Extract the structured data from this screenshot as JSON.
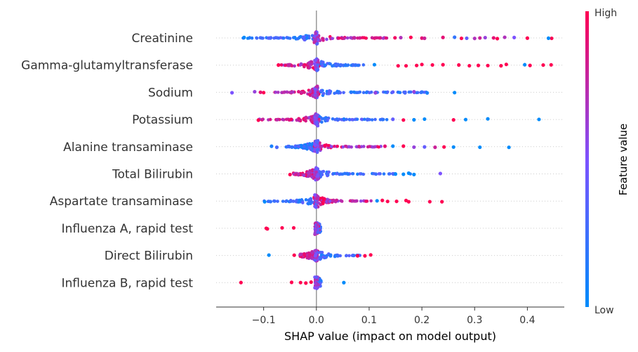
{
  "chart_data": {
    "type": "scatter",
    "subtype": "shap-beeswarm",
    "title": "",
    "xlabel": "SHAP value (impact on model output)",
    "xlim": [
      -0.19,
      0.47
    ],
    "x_ticks": [
      -0.1,
      0.0,
      0.1,
      0.2,
      0.3,
      0.4
    ],
    "x_tick_labels": [
      "−0.1",
      "0.0",
      "0.1",
      "0.2",
      "0.3",
      "0.4"
    ],
    "zero_line": true,
    "grid": false,
    "colorbar": {
      "label": "Feature value",
      "high_label": "High",
      "low_label": "Low",
      "low_color": "#008bfb",
      "mid_color": "#7c52ff",
      "high_color": "#ff0052"
    },
    "features": [
      {
        "name": "Creatinine",
        "core": {
          "range": [
            -0.14,
            0.145
          ],
          "low_side": "negative"
        },
        "points": [
          [
            0.375,
            0.5
          ],
          [
            0.357,
            0.7
          ],
          [
            0.343,
            1.0
          ],
          [
            0.336,
            0.9
          ],
          [
            0.32,
            0.6
          ],
          [
            0.31,
            0.8
          ],
          [
            0.3,
            0.7
          ],
          [
            0.285,
            0.4
          ],
          [
            0.275,
            1.0
          ],
          [
            0.262,
            0.2
          ],
          [
            0.24,
            0.9
          ],
          [
            0.2,
            0.9
          ],
          [
            0.205,
            0.8
          ],
          [
            0.179,
            1.0
          ],
          [
            0.16,
            0.7
          ],
          [
            0.149,
            0.95
          ],
          [
            0.446,
            1.0
          ],
          [
            0.44,
            0.0
          ],
          [
            0.4,
            1.0
          ],
          [
            -0.137,
            0.0
          ]
        ]
      },
      {
        "name": "Gamma-glutamyltransferase",
        "core": {
          "range": [
            -0.075,
            0.09
          ],
          "low_side": "positive"
        },
        "points": [
          [
            0.445,
            1.0
          ],
          [
            0.43,
            1.0
          ],
          [
            0.405,
            1.0
          ],
          [
            0.395,
            0.0
          ],
          [
            0.36,
            1.0
          ],
          [
            0.35,
            1.0
          ],
          [
            0.325,
            1.0
          ],
          [
            0.307,
            1.0
          ],
          [
            0.29,
            1.0
          ],
          [
            0.27,
            1.0
          ],
          [
            0.24,
            1.0
          ],
          [
            0.22,
            1.0
          ],
          [
            0.2,
            1.0
          ],
          [
            0.19,
            1.0
          ],
          [
            0.17,
            1.0
          ],
          [
            0.155,
            1.0
          ],
          [
            0.11,
            0.0
          ],
          [
            -0.072,
            1.0
          ]
        ]
      },
      {
        "name": "Sodium",
        "core": {
          "range": [
            -0.085,
            0.21
          ],
          "low_side": "positive"
        },
        "points": [
          [
            0.262,
            0.0
          ],
          [
            0.21,
            0.1
          ],
          [
            0.2,
            0.2
          ],
          [
            0.185,
            0.6
          ],
          [
            0.168,
            0.3
          ],
          [
            0.145,
            0.4
          ],
          [
            0.112,
            0.6
          ],
          [
            -0.1,
            1.0
          ],
          [
            -0.106,
            0.9
          ],
          [
            -0.117,
            0.6
          ],
          [
            -0.16,
            0.5
          ]
        ]
      },
      {
        "name": "Potassium",
        "core": {
          "range": [
            -0.11,
            0.14
          ],
          "low_side": "positive"
        },
        "points": [
          [
            0.422,
            0.0
          ],
          [
            0.325,
            0.0
          ],
          [
            0.283,
            0.0
          ],
          [
            0.26,
            1.0
          ],
          [
            0.205,
            0.0
          ],
          [
            0.185,
            0.0
          ],
          [
            0.165,
            1.0
          ],
          [
            0.145,
            0.4
          ],
          [
            -0.11,
            1.0
          ]
        ]
      },
      {
        "name": "Alanine transaminase",
        "core": {
          "range": [
            -0.06,
            0.13
          ],
          "low_side": "negative"
        },
        "points": [
          [
            0.365,
            0.0
          ],
          [
            0.31,
            0.0
          ],
          [
            0.26,
            0.0
          ],
          [
            0.242,
            1.0
          ],
          [
            0.225,
            0.8
          ],
          [
            0.205,
            0.4
          ],
          [
            0.185,
            0.6
          ],
          [
            0.165,
            1.0
          ],
          [
            0.145,
            0.0
          ],
          [
            0.13,
            0.9
          ],
          [
            -0.085,
            0.1
          ],
          [
            -0.075,
            0.3
          ]
        ]
      },
      {
        "name": "Total Bilirubin",
        "core": {
          "range": [
            -0.045,
            0.185
          ],
          "low_side": "positive"
        },
        "points": [
          [
            0.235,
            0.5
          ],
          [
            0.185,
            0.0
          ],
          [
            0.175,
            0.0
          ],
          [
            0.165,
            0.0
          ],
          [
            0.15,
            0.0
          ],
          [
            -0.05,
            1.0
          ]
        ]
      },
      {
        "name": "Aspartate transaminase",
        "core": {
          "range": [
            -0.1,
            0.11
          ],
          "low_side": "negative"
        },
        "points": [
          [
            0.238,
            1.0
          ],
          [
            0.215,
            1.0
          ],
          [
            0.175,
            1.0
          ],
          [
            0.17,
            1.0
          ],
          [
            0.152,
            1.0
          ],
          [
            0.135,
            1.0
          ],
          [
            0.125,
            1.0
          ],
          [
            0.115,
            0.0
          ],
          [
            -0.098,
            0.0
          ],
          [
            -0.087,
            0.2
          ]
        ]
      },
      {
        "name": "Influenza A, rapid test",
        "core": {
          "range": [
            -0.002,
            0.008
          ],
          "low_side": "positive"
        },
        "points": [
          [
            -0.095,
            1.0
          ],
          [
            -0.093,
            1.0
          ],
          [
            -0.065,
            1.0
          ],
          [
            -0.043,
            1.0
          ]
        ]
      },
      {
        "name": "Direct Bilirubin",
        "core": {
          "range": [
            -0.035,
            0.09
          ],
          "low_side": "positive"
        },
        "points": [
          [
            0.103,
            1.0
          ],
          [
            0.092,
            1.0
          ],
          [
            0.078,
            1.0
          ],
          [
            -0.09,
            0.0
          ],
          [
            -0.042,
            1.0
          ]
        ]
      },
      {
        "name": "Influenza B, rapid test",
        "core": {
          "range": [
            -0.002,
            0.01
          ],
          "low_side": "positive"
        },
        "points": [
          [
            0.052,
            0.0
          ],
          [
            -0.143,
            1.0
          ],
          [
            -0.047,
            1.0
          ],
          [
            -0.03,
            1.0
          ],
          [
            -0.02,
            1.0
          ],
          [
            -0.01,
            1.0
          ]
        ]
      }
    ]
  }
}
